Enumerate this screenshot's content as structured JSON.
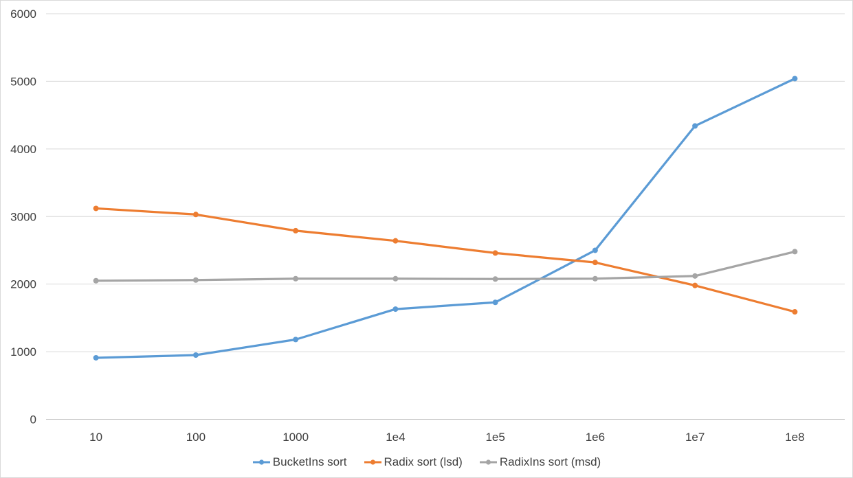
{
  "chart_data": {
    "type": "line",
    "title": "",
    "xlabel": "",
    "ylabel": "",
    "categories": [
      "10",
      "100",
      "1000",
      "1e4",
      "1e5",
      "1e6",
      "1e7",
      "1e8"
    ],
    "series": [
      {
        "name": "BucketIns sort",
        "color": "#5B9BD5",
        "values": [
          910,
          950,
          1180,
          1630,
          1730,
          2500,
          4340,
          5040
        ]
      },
      {
        "name": "Radix sort (lsd)",
        "color": "#ED7D31",
        "values": [
          3120,
          3030,
          2790,
          2640,
          2460,
          2320,
          1980,
          1590
        ]
      },
      {
        "name": "RadixIns sort (msd)",
        "color": "#A5A5A5",
        "values": [
          2050,
          2060,
          2080,
          2080,
          2075,
          2080,
          2120,
          2480
        ]
      }
    ],
    "ylim": [
      0,
      6000
    ],
    "y_ticks": [
      0,
      1000,
      2000,
      3000,
      4000,
      5000,
      6000
    ],
    "grid": "horizontal",
    "legend_position": "bottom",
    "marker": "circle"
  },
  "colors": {
    "background": "#FFFFFF",
    "gridline": "#D9D9D9",
    "axis_line": "#BFBFBF",
    "tick_label": "#404040"
  }
}
